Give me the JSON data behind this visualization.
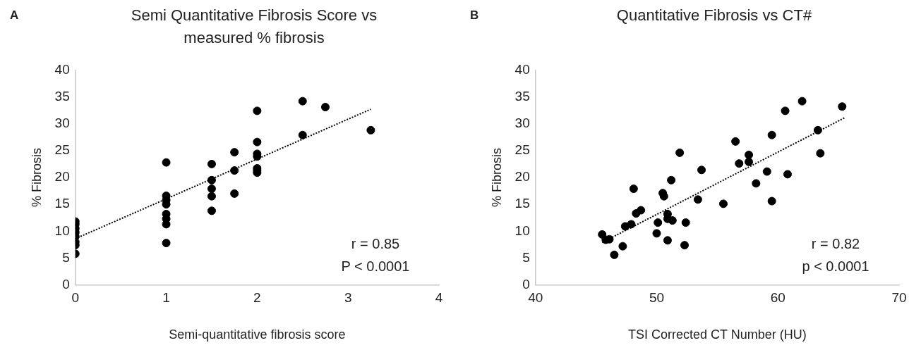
{
  "chart_data": [
    {
      "type": "scatter",
      "title": "Semi Quantitative Fibrosis Score vs measured % fibrosis",
      "xlabel": "Semi-quantitative fibrosis score",
      "ylabel": "% Fibrosis",
      "annotations": [
        "A",
        "r = 0.85",
        "P < 0.0001"
      ],
      "xlim": [
        0,
        4
      ],
      "xticks": [
        0,
        1,
        2,
        3,
        4
      ],
      "ylim": [
        0,
        40
      ],
      "yticks": [
        0,
        5,
        10,
        15,
        20,
        25,
        30,
        35,
        40
      ],
      "grid": false,
      "legend": false,
      "marker": "circle",
      "series": [
        {
          "color": "#000000",
          "x": [
            0,
            0,
            0,
            0,
            0,
            0,
            0,
            0,
            1,
            1,
            1,
            1,
            1,
            1,
            1,
            1,
            1.5,
            1.5,
            1.5,
            1.5,
            1.5,
            1.75,
            1.75,
            1.75,
            2,
            2,
            2,
            2,
            2,
            2,
            2,
            2.5,
            2.5,
            2.75,
            3.25
          ],
          "values": [
            5.8,
            7.4,
            8.0,
            9.0,
            9.8,
            10.5,
            11.3,
            11.8,
            22.8,
            16.6,
            15.8,
            15.0,
            13.2,
            12.3,
            11.3,
            7.8,
            22.5,
            19.5,
            17.9,
            16.5,
            13.8,
            24.7,
            21.3,
            17.0,
            32.4,
            26.6,
            24.4,
            23.9,
            21.7,
            21.3,
            20.9,
            34.2,
            27.9,
            33.1,
            28.8
          ]
        },
        {
          "type": "line",
          "color": "#000000",
          "line_style": "dotted",
          "marker": "none",
          "x": [
            0,
            3.25
          ],
          "values": [
            8.6,
            32.7
          ]
        }
      ]
    },
    {
      "type": "scatter",
      "title": "Quantitative Fibrosis vs CT#",
      "xlabel": "TSI Corrected CT Number (HU)",
      "ylabel": "% Fibrosis",
      "annotations": [
        "B",
        "r = 0.82",
        "p < 0.0001"
      ],
      "xlim": [
        40,
        70
      ],
      "xticks": [
        40,
        50,
        60,
        70
      ],
      "ylim": [
        0,
        40
      ],
      "yticks": [
        0,
        5,
        10,
        15,
        20,
        25,
        30,
        35,
        40
      ],
      "grid": false,
      "legend": false,
      "marker": "circle",
      "series": [
        {
          "color": "#000000",
          "x": [
            45.5,
            45.8,
            46.1,
            46.5,
            47.2,
            47.4,
            47.9,
            48.1,
            48.3,
            48.7,
            50.0,
            50.1,
            50.5,
            50.6,
            50.9,
            50.9,
            50.9,
            51.3,
            51.2,
            51.9,
            52.3,
            52.4,
            53.4,
            53.7,
            55.5,
            56.5,
            56.8,
            57.6,
            57.6,
            58.2,
            59.1,
            59.5,
            59.5,
            60.6,
            60.8,
            62.0,
            63.3,
            63.5,
            65.3
          ],
          "values": [
            9.4,
            8.4,
            8.5,
            5.6,
            7.2,
            10.9,
            11.3,
            17.9,
            13.3,
            13.9,
            9.6,
            11.6,
            17.1,
            16.5,
            13.2,
            12.3,
            8.3,
            12.0,
            19.5,
            24.6,
            7.4,
            11.6,
            15.9,
            21.4,
            15.1,
            26.7,
            22.6,
            24.2,
            22.9,
            18.9,
            21.1,
            27.9,
            15.6,
            32.4,
            20.6,
            34.2,
            28.8,
            24.5,
            33.2
          ]
        },
        {
          "type": "line",
          "color": "#000000",
          "line_style": "dotted",
          "marker": "none",
          "x": [
            45.5,
            65.5
          ],
          "values": [
            7.9,
            31.1
          ]
        }
      ]
    }
  ]
}
